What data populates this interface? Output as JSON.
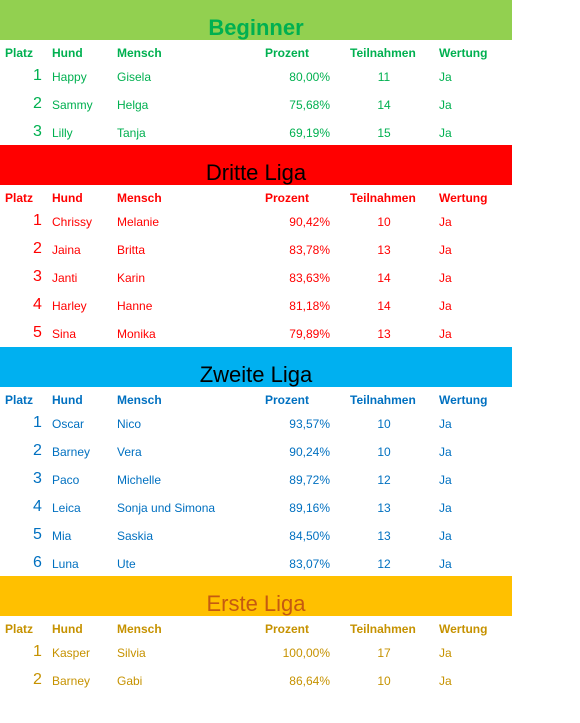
{
  "columns": {
    "platz": "Platz",
    "hund": "Hund",
    "mensch": "Mensch",
    "prozent": "Prozent",
    "teilnahmen": "Teilnahmen",
    "wertung": "Wertung"
  },
  "sections": [
    {
      "title": "Beginner",
      "banner_color": "#92d050",
      "title_color": "#00b050",
      "header_color": "#00b050",
      "text_color": "#00b050",
      "title_bold": true,
      "rows": [
        {
          "platz": "1",
          "hund": "Happy",
          "mensch": "Gisela",
          "prozent": "80,00%",
          "teilnahmen": "11",
          "wertung": "Ja"
        },
        {
          "platz": "2",
          "hund": "Sammy",
          "mensch": "Helga",
          "prozent": "75,68%",
          "teilnahmen": "14",
          "wertung": "Ja"
        },
        {
          "platz": "3",
          "hund": "Lilly",
          "mensch": "Tanja",
          "prozent": "69,19%",
          "teilnahmen": "15",
          "wertung": "Ja"
        }
      ]
    },
    {
      "title": "Dritte Liga",
      "banner_color": "#ff0000",
      "title_color": "#000000",
      "header_color": "#ff0000",
      "text_color": "#ff0000",
      "title_bold": false,
      "rows": [
        {
          "platz": "1",
          "hund": "Chrissy",
          "mensch": "Melanie",
          "prozent": "90,42%",
          "teilnahmen": "10",
          "wertung": "Ja"
        },
        {
          "platz": "2",
          "hund": "Jaina",
          "mensch": "Britta",
          "prozent": "83,78%",
          "teilnahmen": "13",
          "wertung": "Ja"
        },
        {
          "platz": "3",
          "hund": "Janti",
          "mensch": "Karin",
          "prozent": "83,63%",
          "teilnahmen": "14",
          "wertung": "Ja"
        },
        {
          "platz": "4",
          "hund": "Harley",
          "mensch": "Hanne",
          "prozent": "81,18%",
          "teilnahmen": "14",
          "wertung": "Ja"
        },
        {
          "platz": "5",
          "hund": "Sina",
          "mensch": "Monika",
          "prozent": "79,89%",
          "teilnahmen": "13",
          "wertung": "Ja"
        }
      ]
    },
    {
      "title": "Zweite Liga",
      "banner_color": "#00b0f0",
      "title_color": "#000000",
      "header_color": "#0070c0",
      "text_color": "#0070c0",
      "title_bold": false,
      "rows": [
        {
          "platz": "1",
          "hund": "Oscar",
          "mensch": "Nico",
          "prozent": "93,57%",
          "teilnahmen": "10",
          "wertung": "Ja"
        },
        {
          "platz": "2",
          "hund": "Barney",
          "mensch": "Vera",
          "prozent": "90,24%",
          "teilnahmen": "10",
          "wertung": "Ja"
        },
        {
          "platz": "3",
          "hund": "Paco",
          "mensch": "Michelle",
          "prozent": "89,72%",
          "teilnahmen": "12",
          "wertung": "Ja"
        },
        {
          "platz": "4",
          "hund": "Leica",
          "mensch": "Sonja und Simona",
          "prozent": "89,16%",
          "teilnahmen": "13",
          "wertung": "Ja"
        },
        {
          "platz": "5",
          "hund": "Mia",
          "mensch": "Saskia",
          "prozent": "84,50%",
          "teilnahmen": "13",
          "wertung": "Ja"
        },
        {
          "platz": "6",
          "hund": "Luna",
          "mensch": "Ute",
          "prozent": "83,07%",
          "teilnahmen": "12",
          "wertung": "Ja"
        }
      ]
    },
    {
      "title": "Erste Liga",
      "banner_color": "#ffc000",
      "title_color": "#c55a11",
      "header_color": "#c69200",
      "text_color": "#c69200",
      "title_bold": false,
      "rows": [
        {
          "platz": "1",
          "hund": "Kasper",
          "mensch": "Silvia",
          "prozent": "100,00%",
          "teilnahmen": "17",
          "wertung": "Ja"
        },
        {
          "platz": "2",
          "hund": "Barney",
          "mensch": "Gabi",
          "prozent": "86,64%",
          "teilnahmen": "10",
          "wertung": "Ja"
        }
      ]
    }
  ]
}
